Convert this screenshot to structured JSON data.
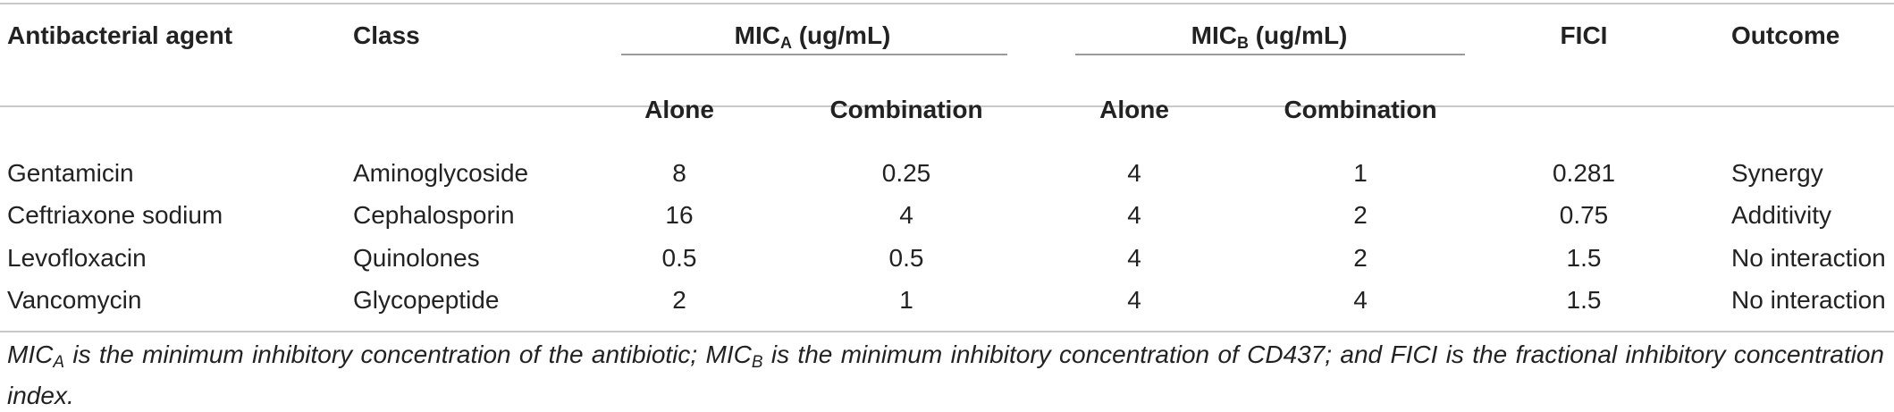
{
  "headers": {
    "agent": "Antibacterial agent",
    "class": "Class",
    "mica": {
      "base": "MIC",
      "sub": "A",
      "unit": " (ug/mL)"
    },
    "micb": {
      "base": "MIC",
      "sub": "B",
      "unit": " (ug/mL)"
    },
    "fici": "FICI",
    "outcome": "Outcome",
    "alone": "Alone",
    "combination": "Combination"
  },
  "rows": [
    {
      "agent": "Gentamicin",
      "class": "Aminoglycoside",
      "mica_alone": "8",
      "mica_comb": "0.25",
      "micb_alone": "4",
      "micb_comb": "1",
      "fici": "0.281",
      "outcome": "Synergy"
    },
    {
      "agent": "Ceftriaxone sodium",
      "class": "Cephalosporin",
      "mica_alone": "16",
      "mica_comb": "4",
      "micb_alone": "4",
      "micb_comb": "2",
      "fici": "0.75",
      "outcome": "Additivity"
    },
    {
      "agent": "Levofloxacin",
      "class": "Quinolones",
      "mica_alone": "0.5",
      "mica_comb": "0.5",
      "micb_alone": "4",
      "micb_comb": "2",
      "fici": "1.5",
      "outcome": "No interaction"
    },
    {
      "agent": "Vancomycin",
      "class": "Glycopeptide",
      "mica_alone": "2",
      "mica_comb": "1",
      "micb_alone": "4",
      "micb_comb": "4",
      "fici": "1.5",
      "outcome": "No interaction"
    }
  ],
  "footnote": {
    "p1": "MIC",
    "s1": "A",
    "p2": " is the minimum inhibitory concentration of the antibiotic; MIC",
    "s2": "B",
    "p3": " is the minimum inhibitory concentration of CD437; and FICI is the fractional inhibitory concentration index."
  }
}
